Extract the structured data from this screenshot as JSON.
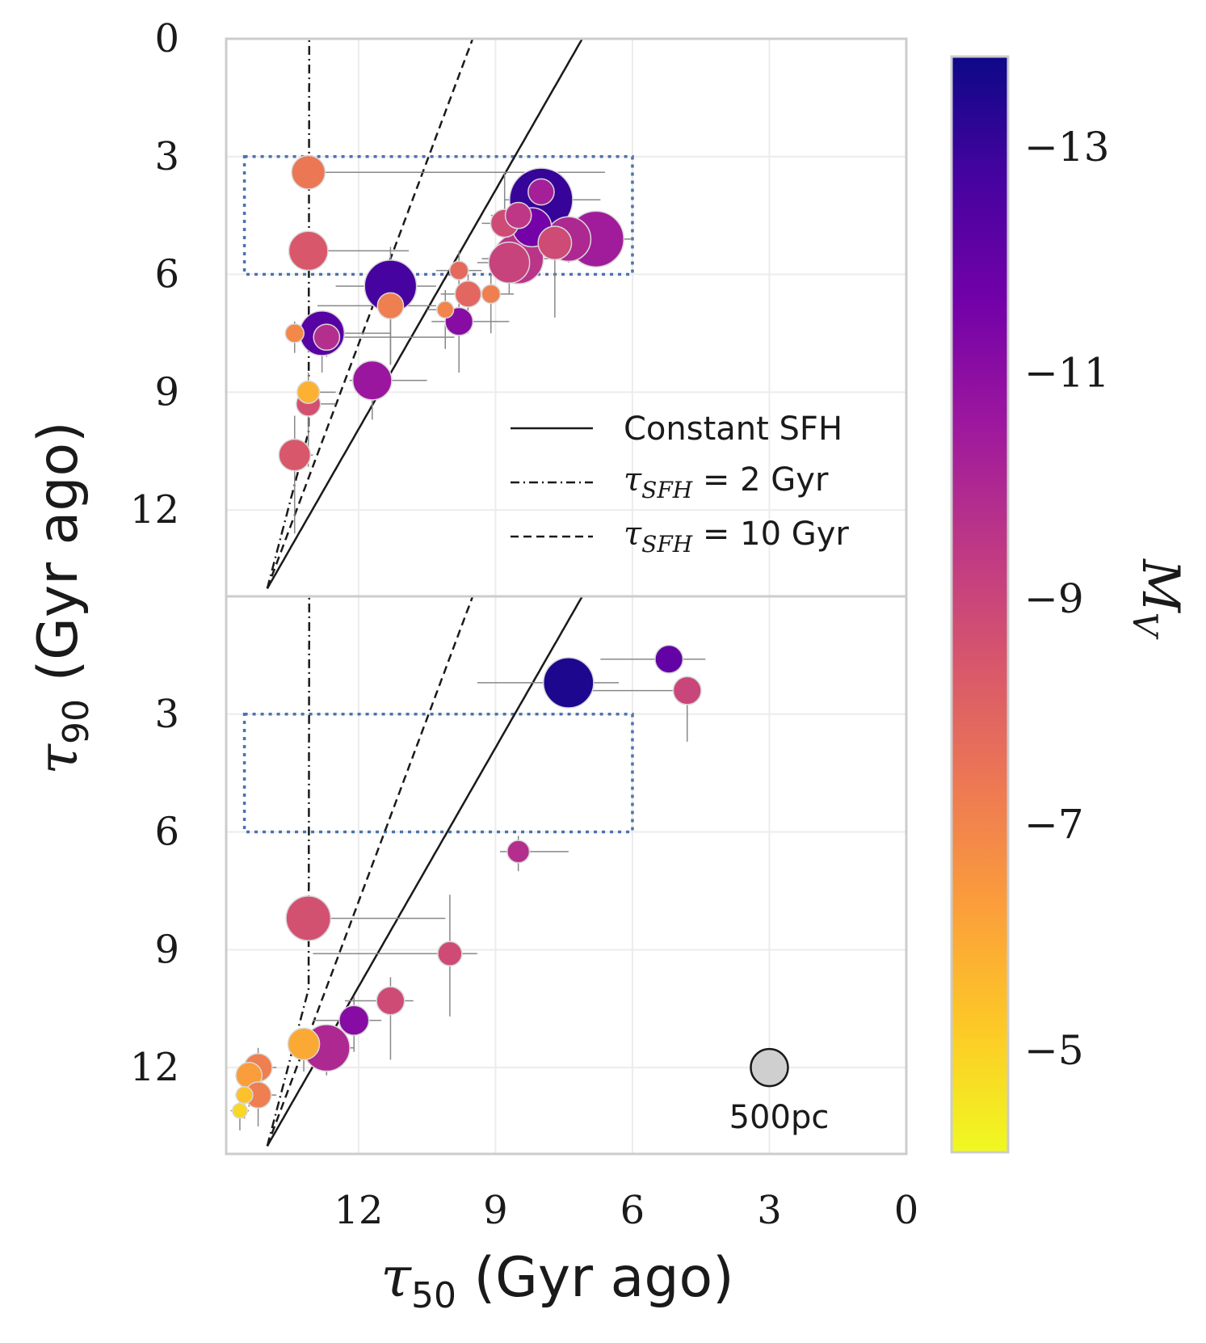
{
  "chart_data": [
    {
      "type": "scatter",
      "panel": "top",
      "xlabel_symbol": "τ",
      "xlabel_subscript": "50",
      "xlabel_text": "(Gyr ago)",
      "ylabel_symbol": "τ",
      "ylabel_subscript": "90",
      "ylabel_text": "(Gyr ago)",
      "xlim": [
        14.9,
        0
      ],
      "ylim": [
        14.2,
        0
      ],
      "xticks": [
        12,
        9,
        6,
        3,
        0
      ],
      "yticks": [
        0,
        3,
        6,
        9,
        12
      ],
      "grid": true,
      "box_region": {
        "tau50": [
          14.5,
          6
        ],
        "tau90": [
          3,
          6
        ]
      },
      "legend": {
        "position": "lower-right",
        "entries": [
          {
            "style": "solid",
            "label_prefix": "",
            "label_sub": "",
            "label_suffix": "Constant SFH"
          },
          {
            "style": "dashdot",
            "label_prefix": "τ",
            "label_sub": "SFH",
            "label_suffix": " = 2 Gyr"
          },
          {
            "style": "dashed",
            "label_prefix": "τ",
            "label_sub": "SFH",
            "label_suffix": " = 10 Gyr"
          }
        ]
      },
      "points": [
        {
          "tau50": 13.1,
          "tau90": 3.4,
          "Mv": -7.4,
          "size": 0.9,
          "xerr": [
            0.3,
            6.5
          ],
          "yerr": [
            0,
            0
          ]
        },
        {
          "tau50": 13.1,
          "tau90": 5.4,
          "Mv": -8.4,
          "size": 1.05,
          "xerr": [
            0.3,
            2.2
          ],
          "yerr": [
            0.4,
            0.3
          ]
        },
        {
          "tau50": 11.3,
          "tau90": 6.3,
          "Mv": -12.7,
          "size": 1.4,
          "xerr": [
            1.2,
            1.0
          ],
          "yerr": [
            1.0,
            2.0
          ]
        },
        {
          "tau50": 11.3,
          "tau90": 6.8,
          "Mv": -7.2,
          "size": 0.7,
          "xerr": [
            1.6,
            1.0
          ],
          "yerr": [
            0.5,
            1.5
          ]
        },
        {
          "tau50": 12.8,
          "tau90": 7.5,
          "Mv": -12.3,
          "size": 1.2,
          "xerr": [
            0.5,
            1.5
          ],
          "yerr": [
            0.5,
            1.0
          ]
        },
        {
          "tau50": 12.7,
          "tau90": 7.6,
          "Mv": -9.8,
          "size": 0.7,
          "xerr": [
            0.4,
            2.8
          ],
          "yerr": [
            0.3,
            0.5
          ]
        },
        {
          "tau50": 13.4,
          "tau90": 7.5,
          "Mv": -6.9,
          "size": 0.5,
          "xerr": [
            0.2,
            0.5
          ],
          "yerr": [
            0.3,
            0.5
          ]
        },
        {
          "tau50": 11.7,
          "tau90": 8.7,
          "Mv": -10.6,
          "size": 1.05,
          "xerr": [
            0.5,
            1.2
          ],
          "yerr": [
            0.4,
            1.0
          ]
        },
        {
          "tau50": 13.1,
          "tau90": 9.0,
          "Mv": -5.8,
          "size": 0.6,
          "xerr": [
            0.2,
            0.6
          ],
          "yerr": [
            0.5,
            1.5
          ]
        },
        {
          "tau50": 13.1,
          "tau90": 9.3,
          "Mv": -8.6,
          "size": 0.65,
          "xerr": [
            0.2,
            0.6
          ],
          "yerr": [
            0.6,
            1.6
          ]
        },
        {
          "tau50": 13.4,
          "tau90": 10.6,
          "Mv": -8.4,
          "size": 0.85,
          "xerr": [
            0.2,
            0.4
          ],
          "yerr": [
            1.0,
            2.0
          ]
        },
        {
          "tau50": 9.8,
          "tau90": 5.9,
          "Mv": -7.8,
          "size": 0.5,
          "xerr": [
            0.5,
            0.5
          ],
          "yerr": [
            0.5,
            1.5
          ]
        },
        {
          "tau50": 10.1,
          "tau90": 6.9,
          "Mv": -7.0,
          "size": 0.45,
          "xerr": [
            0.4,
            0.5
          ],
          "yerr": [
            0.5,
            1.0
          ]
        },
        {
          "tau50": 9.6,
          "tau90": 6.5,
          "Mv": -7.9,
          "size": 0.7,
          "xerr": [
            0.6,
            0.5
          ],
          "yerr": [
            0.5,
            1.0
          ]
        },
        {
          "tau50": 9.1,
          "tau90": 6.5,
          "Mv": -7.2,
          "size": 0.5,
          "xerr": [
            0.5,
            0.5
          ],
          "yerr": [
            0.5,
            1.0
          ]
        },
        {
          "tau50": 9.8,
          "tau90": 7.2,
          "Mv": -11.1,
          "size": 0.75,
          "xerr": [
            0.6,
            1.1
          ],
          "yerr": [
            0.6,
            1.3
          ]
        },
        {
          "tau50": 8.5,
          "tau90": 5.6,
          "Mv": -9.6,
          "size": 1.35,
          "xerr": [
            0.8,
            0.7
          ],
          "yerr": [
            0.7,
            0.6
          ]
        },
        {
          "tau50": 8.7,
          "tau90": 5.7,
          "Mv": -9.1,
          "size": 1.1,
          "xerr": [
            0.7,
            0.6
          ],
          "yerr": [
            0.8,
            0.8
          ]
        },
        {
          "tau50": 8.2,
          "tau90": 4.8,
          "Mv": -11.6,
          "size": 1.05,
          "xerr": [
            0.7,
            0.6
          ],
          "yerr": [
            0.8,
            0.6
          ]
        },
        {
          "tau50": 8.0,
          "tau90": 4.1,
          "Mv": -13.0,
          "size": 1.7,
          "xerr": [
            0.8,
            1.3
          ],
          "yerr": [
            0.6,
            0.9
          ]
        },
        {
          "tau50": 8.0,
          "tau90": 3.9,
          "Mv": -10.3,
          "size": 0.7,
          "xerr": [
            0.5,
            0.5
          ],
          "yerr": [
            0.5,
            0.6
          ]
        },
        {
          "tau50": 8.5,
          "tau90": 4.5,
          "Mv": -9.5,
          "size": 0.7,
          "xerr": [
            0.6,
            0.8
          ],
          "yerr": [
            0.8,
            0.6
          ]
        },
        {
          "tau50": 8.8,
          "tau90": 4.7,
          "Mv": -8.8,
          "size": 0.75,
          "xerr": [
            0.5,
            0.7
          ],
          "yerr": [
            1.3,
            1.0
          ]
        },
        {
          "tau50": 7.4,
          "tau90": 5.1,
          "Mv": -10.0,
          "size": 1.2,
          "xerr": [
            0.8,
            1.2
          ],
          "yerr": [
            0.6,
            0.6
          ]
        },
        {
          "tau50": 6.8,
          "tau90": 5.1,
          "Mv": -10.4,
          "size": 1.5,
          "xerr": [
            0.7,
            0.8
          ],
          "yerr": [
            0.7,
            0.7
          ]
        },
        {
          "tau50": 7.7,
          "tau90": 5.2,
          "Mv": -8.8,
          "size": 0.9,
          "xerr": [
            0.6,
            0.6
          ],
          "yerr": [
            0.5,
            1.9
          ]
        }
      ]
    },
    {
      "type": "scatter",
      "panel": "bottom",
      "xlim": [
        14.9,
        0
      ],
      "ylim": [
        14.2,
        0
      ],
      "xticks": [
        12,
        9,
        6,
        3,
        0
      ],
      "yticks": [
        3,
        6,
        9,
        12
      ],
      "grid": true,
      "box_region": {
        "tau50": [
          14.5,
          6
        ],
        "tau90": [
          3,
          6
        ]
      },
      "size_reference": {
        "tau50": 3,
        "tau90": 12,
        "label": "500pc"
      },
      "points": [
        {
          "tau50": 5.2,
          "tau90": 1.6,
          "Mv": -12.0,
          "size": 0.75,
          "xerr": [
            1.5,
            0.8
          ],
          "yerr": [
            0,
            0
          ]
        },
        {
          "tau50": 7.4,
          "tau90": 2.2,
          "Mv": -13.5,
          "size": 1.35,
          "xerr": [
            2.0,
            1.1
          ],
          "yerr": [
            0,
            0
          ]
        },
        {
          "tau50": 4.8,
          "tau90": 2.4,
          "Mv": -9.0,
          "size": 0.75,
          "xerr": [
            2.8,
            0
          ],
          "yerr": [
            0,
            1.3
          ]
        },
        {
          "tau50": 8.5,
          "tau90": 6.5,
          "Mv": -9.8,
          "size": 0.6,
          "xerr": [
            0.4,
            1.1
          ],
          "yerr": [
            0.4,
            0.5
          ]
        },
        {
          "tau50": 13.1,
          "tau90": 8.2,
          "Mv": -8.6,
          "size": 1.2,
          "xerr": [
            0.2,
            3.0
          ],
          "yerr": [
            0.5,
            0.5
          ]
        },
        {
          "tau50": 10.0,
          "tau90": 9.1,
          "Mv": -8.8,
          "size": 0.65,
          "xerr": [
            3.0,
            0.6
          ],
          "yerr": [
            1.5,
            1.6
          ]
        },
        {
          "tau50": 11.3,
          "tau90": 10.3,
          "Mv": -8.8,
          "size": 0.75,
          "xerr": [
            1.0,
            0.5
          ],
          "yerr": [
            0.6,
            1.5
          ]
        },
        {
          "tau50": 12.1,
          "tau90": 10.8,
          "Mv": -11.1,
          "size": 0.8,
          "xerr": [
            0.9,
            0.6
          ],
          "yerr": [
            0.6,
            0.8
          ]
        },
        {
          "tau50": 12.7,
          "tau90": 11.5,
          "Mv": -10.0,
          "size": 1.25,
          "xerr": [
            0.4,
            0.6
          ],
          "yerr": [
            0.4,
            0.7
          ]
        },
        {
          "tau50": 13.2,
          "tau90": 11.4,
          "Mv": -6.0,
          "size": 0.85,
          "xerr": [
            0.3,
            0.9
          ],
          "yerr": [
            0.4,
            0.7
          ]
        },
        {
          "tau50": 14.2,
          "tau90": 12.0,
          "Mv": -7.2,
          "size": 0.75,
          "xerr": [
            0.4,
            0.4
          ],
          "yerr": [
            0.5,
            1.0
          ]
        },
        {
          "tau50": 14.4,
          "tau90": 12.2,
          "Mv": -6.3,
          "size": 0.7,
          "xerr": [
            0.3,
            0.4
          ],
          "yerr": [
            0.4,
            0.8
          ]
        },
        {
          "tau50": 14.2,
          "tau90": 12.7,
          "Mv": -7.2,
          "size": 0.7,
          "xerr": [
            0.3,
            0.4
          ],
          "yerr": [
            0.4,
            0.8
          ]
        },
        {
          "tau50": 14.5,
          "tau90": 12.7,
          "Mv": -5.4,
          "size": 0.45,
          "xerr": [
            0.2,
            0.3
          ],
          "yerr": [
            0.4,
            0.6
          ]
        },
        {
          "tau50": 14.6,
          "tau90": 13.1,
          "Mv": -4.9,
          "size": 0.4,
          "xerr": [
            0.2,
            0.2
          ],
          "yerr": [
            0.3,
            0.5
          ]
        }
      ]
    }
  ],
  "colorbar": {
    "label_symbol": "M",
    "label_subscript": "V",
    "ticks": [
      "−13",
      "−11",
      "−9",
      "−7",
      "−5"
    ],
    "tick_values": [
      -13,
      -11,
      -9,
      -7,
      -5
    ],
    "range": [
      -13.8,
      -4.1
    ],
    "colormap": "plasma",
    "stops": [
      "#f0f921",
      "#fdca26",
      "#fb9f3a",
      "#ed7953",
      "#d8576b",
      "#bd3786",
      "#9c179e",
      "#7201a8",
      "#46039f",
      "#0d0887"
    ]
  }
}
